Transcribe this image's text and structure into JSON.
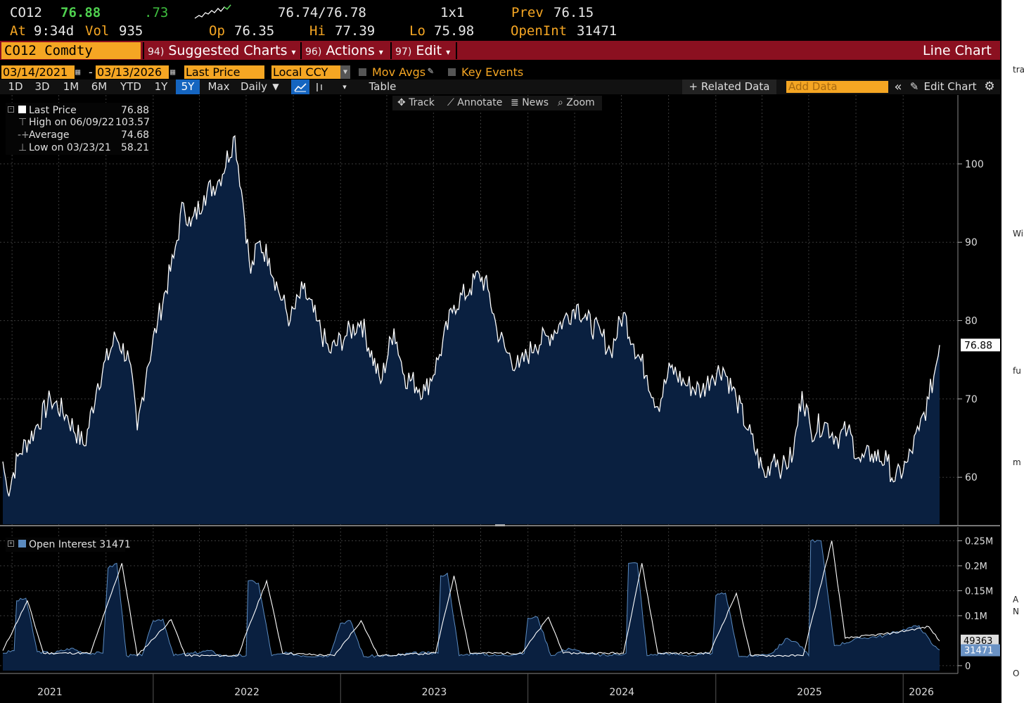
{
  "quote": {
    "ticker": "CO12",
    "last": "76.88",
    "change": ".73",
    "bid_ask": "76.74/76.78",
    "size": "1x1",
    "prev_label": "Prev",
    "prev": "76.15",
    "at_label": "At",
    "time": "9:34d",
    "vol_label": "Vol",
    "vol": "935",
    "op_label": "Op",
    "op": "76.35",
    "hi_label": "Hi",
    "hi": "77.39",
    "lo_label": "Lo",
    "lo": "75.98",
    "oi_label": "OpenInt",
    "oi": "31471"
  },
  "toolbar": {
    "security": "CO12 Comdty",
    "suggested_num": "94)",
    "suggested": "Suggested Charts",
    "actions_num": "96)",
    "actions": "Actions",
    "edit_num": "97)",
    "edit": "Edit",
    "chart_type": "Line Chart"
  },
  "range": {
    "start": "03/14/2021",
    "dash": "-",
    "end": "03/13/2026",
    "field": "Last Price",
    "currency": "Local CCY",
    "mov_avgs": "Mov Avgs",
    "key_events": "Key Events"
  },
  "periods": [
    "1D",
    "3D",
    "1M",
    "6M",
    "YTD",
    "1Y",
    "5Y",
    "Max"
  ],
  "selected_period": "5Y",
  "frequency": "Daily",
  "table_label": "Table",
  "related": "+ Related Data",
  "add_data_placeholder": "Add Data",
  "edit_chart": "Edit Chart",
  "tools": {
    "track": "Track",
    "annotate": "Annotate",
    "news": "News",
    "zoom": "Zoom"
  },
  "legend": {
    "last_label": "Last Price",
    "last_value": "76.88",
    "high_label": "High on 06/09/22",
    "high_value": "103.57",
    "avg_label": "Average",
    "avg_value": "74.68",
    "low_label": "Low on 03/23/21",
    "low_value": "58.21",
    "oi_label": "Open Interest 31471"
  },
  "colors": {
    "accent": "#f5a623",
    "toolbar": "#8b1020",
    "fill": "#0a2040",
    "line": "#ffffff",
    "up": "#4fd14f"
  },
  "chart_data": [
    {
      "type": "area",
      "series": [
        {
          "name": "Last Price",
          "values": [
            [
              "2021-03-14",
              62
            ],
            [
              "2021-03-23",
              58.2
            ],
            [
              "2021-04-15",
              63
            ],
            [
              "2021-05-15",
              66
            ],
            [
              "2021-06-15",
              70
            ],
            [
              "2021-07-15",
              68
            ],
            [
              "2021-08-20",
              64
            ],
            [
              "2021-09-15",
              72
            ],
            [
              "2021-10-20",
              78
            ],
            [
              "2021-11-15",
              75
            ],
            [
              "2021-12-01",
              66
            ],
            [
              "2021-12-20",
              74
            ],
            [
              "2022-01-10",
              80
            ],
            [
              "2022-02-10",
              88
            ],
            [
              "2022-03-01",
              95
            ],
            [
              "2022-03-15",
              92
            ],
            [
              "2022-04-10",
              96
            ],
            [
              "2022-05-10",
              98
            ],
            [
              "2022-06-09",
              103.57
            ],
            [
              "2022-06-25",
              95
            ],
            [
              "2022-07-10",
              86
            ],
            [
              "2022-07-25",
              90
            ],
            [
              "2022-08-15",
              88
            ],
            [
              "2022-09-01",
              84
            ],
            [
              "2022-09-25",
              80
            ],
            [
              "2022-10-20",
              84
            ],
            [
              "2022-11-15",
              80
            ],
            [
              "2022-12-10",
              76
            ],
            [
              "2023-01-10",
              78
            ],
            [
              "2023-02-10",
              80
            ],
            [
              "2023-03-20",
              72
            ],
            [
              "2023-04-15",
              79
            ],
            [
              "2023-05-05",
              73
            ],
            [
              "2023-06-15",
              71
            ],
            [
              "2023-07-10",
              75
            ],
            [
              "2023-08-10",
              82
            ],
            [
              "2023-09-10",
              84
            ],
            [
              "2023-09-28",
              86
            ],
            [
              "2023-10-15",
              84
            ],
            [
              "2023-11-01",
              79
            ],
            [
              "2023-11-20",
              76
            ],
            [
              "2023-12-15",
              74
            ],
            [
              "2024-01-15",
              77
            ],
            [
              "2024-02-10",
              78
            ],
            [
              "2024-03-10",
              80
            ],
            [
              "2024-04-05",
              82
            ],
            [
              "2024-04-25",
              80
            ],
            [
              "2024-05-25",
              78
            ],
            [
              "2024-06-10",
              76
            ],
            [
              "2024-07-05",
              81
            ],
            [
              "2024-07-25",
              77
            ],
            [
              "2024-08-20",
              73
            ],
            [
              "2024-09-10",
              69
            ],
            [
              "2024-10-05",
              74
            ],
            [
              "2024-11-01",
              72
            ],
            [
              "2024-12-05",
              71
            ],
            [
              "2024-12-25",
              73
            ],
            [
              "2025-01-15",
              74
            ],
            [
              "2025-02-10",
              70
            ],
            [
              "2025-03-05",
              66
            ],
            [
              "2025-04-07",
              60
            ],
            [
              "2025-04-25",
              63
            ],
            [
              "2025-05-10",
              61
            ],
            [
              "2025-06-01",
              63
            ],
            [
              "2025-06-18",
              71
            ],
            [
              "2025-07-05",
              66
            ],
            [
              "2025-08-01",
              67
            ],
            [
              "2025-08-25",
              65
            ],
            [
              "2025-09-15",
              66
            ],
            [
              "2025-10-10",
              62
            ],
            [
              "2025-11-01",
              63
            ],
            [
              "2025-12-01",
              62
            ],
            [
              "2025-12-16",
              59.5
            ],
            [
              "2026-01-10",
              62
            ],
            [
              "2026-02-01",
              66
            ],
            [
              "2026-02-20",
              70
            ],
            [
              "2026-03-05",
              74
            ],
            [
              "2026-03-13",
              76.88
            ]
          ]
        }
      ],
      "y_ticks": [
        60,
        70,
        80,
        90,
        100
      ],
      "ylim": [
        54,
        107
      ],
      "last_value_label": "76.88"
    },
    {
      "type": "area",
      "series": [
        {
          "name": "Open Interest",
          "values": [
            [
              "2021-03-14",
              25000
            ],
            [
              "2021-04-05",
              30000
            ],
            [
              "2021-04-10",
              130000
            ],
            [
              "2021-04-28",
              135000
            ],
            [
              "2021-05-20",
              28000
            ],
            [
              "2021-06-20",
              25000
            ],
            [
              "2021-07-25",
              35000
            ],
            [
              "2021-08-20",
              25000
            ],
            [
              "2021-09-25",
              25000
            ],
            [
              "2021-10-05",
              195000
            ],
            [
              "2021-10-22",
              205000
            ],
            [
              "2021-11-10",
              20000
            ],
            [
              "2021-12-10",
              20000
            ],
            [
              "2022-01-01",
              90000
            ],
            [
              "2022-01-20",
              93000
            ],
            [
              "2022-02-10",
              20000
            ],
            [
              "2022-03-20",
              25000
            ],
            [
              "2022-04-20",
              30000
            ],
            [
              "2022-05-15",
              20000
            ],
            [
              "2022-07-01",
              20000
            ],
            [
              "2022-07-05",
              170000
            ],
            [
              "2022-07-25",
              165000
            ],
            [
              "2022-08-20",
              20000
            ],
            [
              "2022-09-20",
              25000
            ],
            [
              "2022-10-20",
              20000
            ],
            [
              "2022-12-10",
              20000
            ],
            [
              "2023-01-01",
              85000
            ],
            [
              "2023-01-20",
              90000
            ],
            [
              "2023-02-15",
              18000
            ],
            [
              "2023-03-20",
              20000
            ],
            [
              "2023-04-20",
              20000
            ],
            [
              "2023-05-20",
              25000
            ],
            [
              "2023-07-10",
              25000
            ],
            [
              "2023-07-15",
              180000
            ],
            [
              "2023-07-28",
              185000
            ],
            [
              "2023-08-20",
              20000
            ],
            [
              "2023-09-20",
              25000
            ],
            [
              "2023-11-01",
              20000
            ],
            [
              "2023-12-25",
              25000
            ],
            [
              "2024-01-01",
              95000
            ],
            [
              "2024-01-20",
              97000
            ],
            [
              "2024-02-15",
              20000
            ],
            [
              "2024-03-20",
              35000
            ],
            [
              "2024-04-20",
              25000
            ],
            [
              "2024-06-01",
              20000
            ],
            [
              "2024-07-10",
              25000
            ],
            [
              "2024-07-15",
              205000
            ],
            [
              "2024-08-01",
              205000
            ],
            [
              "2024-08-20",
              20000
            ],
            [
              "2024-09-20",
              25000
            ],
            [
              "2024-11-20",
              20000
            ],
            [
              "2024-12-25",
              25000
            ],
            [
              "2025-01-01",
              140000
            ],
            [
              "2025-01-20",
              145000
            ],
            [
              "2025-02-15",
              18000
            ],
            [
              "2025-03-20",
              20000
            ],
            [
              "2025-04-20",
              25000
            ],
            [
              "2025-05-20",
              55000
            ],
            [
              "2025-06-10",
              45000
            ],
            [
              "2025-07-01",
              20000
            ],
            [
              "2025-07-05",
              250000
            ],
            [
              "2025-07-25",
              250000
            ],
            [
              "2025-08-20",
              40000
            ],
            [
              "2025-10-10",
              55000
            ],
            [
              "2025-11-25",
              60000
            ],
            [
              "2025-12-20",
              68000
            ],
            [
              "2026-01-10",
              75000
            ],
            [
              "2026-02-01",
              80000
            ],
            [
              "2026-03-01",
              40000
            ],
            [
              "2026-03-13",
              31471
            ]
          ]
        },
        {
          "name": "",
          "values": [
            [
              "2021-03-14",
              30000
            ],
            [
              "2021-05-01",
              130000
            ],
            [
              "2021-06-01",
              25000
            ],
            [
              "2021-09-01",
              25000
            ],
            [
              "2021-11-01",
              205000
            ],
            [
              "2021-12-01",
              20000
            ],
            [
              "2022-02-05",
              92000
            ],
            [
              "2022-03-05",
              20000
            ],
            [
              "2022-06-15",
              20000
            ],
            [
              "2022-08-10",
              170000
            ],
            [
              "2022-09-10",
              25000
            ],
            [
              "2022-12-20",
              20000
            ],
            [
              "2023-02-10",
              90000
            ],
            [
              "2023-03-15",
              20000
            ],
            [
              "2023-07-05",
              25000
            ],
            [
              "2023-08-10",
              180000
            ],
            [
              "2023-09-10",
              25000
            ],
            [
              "2023-12-20",
              25000
            ],
            [
              "2024-02-10",
              97000
            ],
            [
              "2024-03-10",
              25000
            ],
            [
              "2024-07-05",
              25000
            ],
            [
              "2024-08-10",
              205000
            ],
            [
              "2024-09-10",
              25000
            ],
            [
              "2024-12-20",
              25000
            ],
            [
              "2025-02-10",
              145000
            ],
            [
              "2025-03-10",
              20000
            ],
            [
              "2025-06-20",
              20000
            ],
            [
              "2025-08-15",
              250000
            ],
            [
              "2025-09-10",
              55000
            ],
            [
              "2025-12-10",
              65000
            ],
            [
              "2026-02-20",
              78000
            ],
            [
              "2026-03-13",
              49363
            ]
          ]
        }
      ],
      "y_tick_labels": [
        "0",
        "0.1M",
        "0.15M",
        "0.2M",
        "0.25M"
      ],
      "y_tick_values": [
        0,
        100000,
        150000,
        200000,
        250000
      ],
      "ylim": [
        -10000,
        262000
      ],
      "last_value_label": "31471",
      "secondary_value_label": "49363"
    }
  ],
  "x_axis": {
    "labels": [
      "2021",
      "2022",
      "2023",
      "2024",
      "2025",
      "2026"
    ],
    "start": "2021-03-14",
    "end": "2026-03-13"
  },
  "right_panel_text": [
    "tra",
    "Wi",
    "fu",
    "m",
    "A",
    "N",
    "O"
  ]
}
